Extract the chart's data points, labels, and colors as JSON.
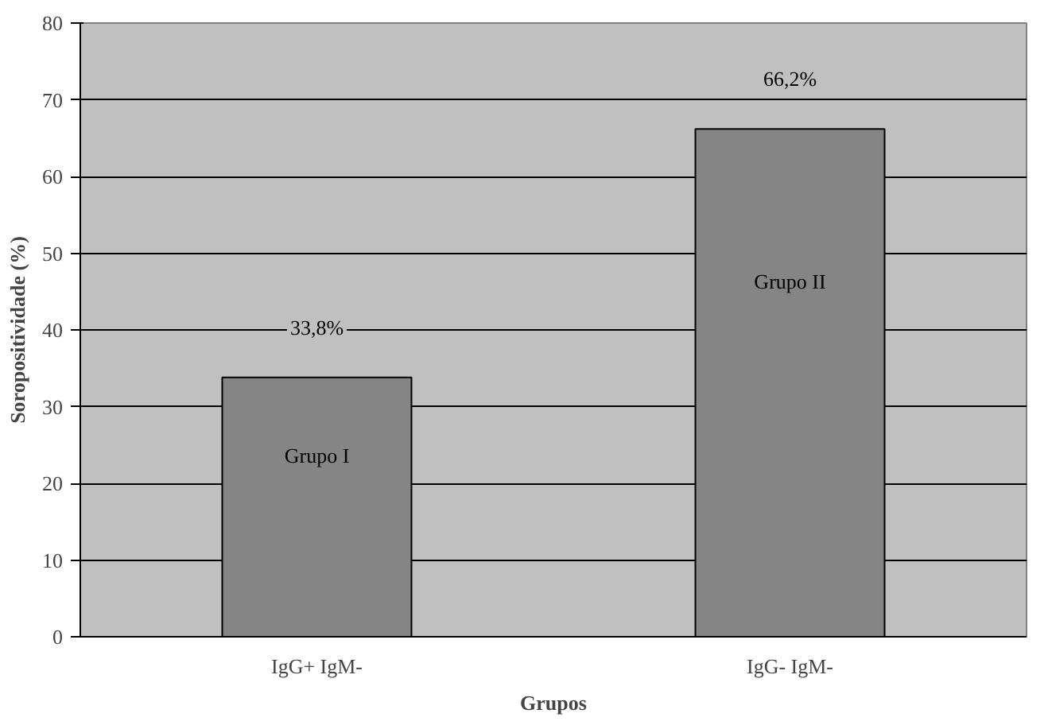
{
  "chart_data": {
    "type": "bar",
    "xlabel": "Grupos",
    "ylabel": "Soropositividade (%)",
    "categories": [
      "IgG+ IgM-",
      "IgG- IgM-"
    ],
    "values": [
      33.8,
      66.2
    ],
    "value_labels": [
      "33,8%",
      "66,2%"
    ],
    "colors": [
      "#858585",
      "#858585"
    ],
    "ylim": [
      0,
      80
    ],
    "yticks": [
      0,
      10,
      20,
      30,
      40,
      50,
      60,
      70,
      80
    ],
    "grid": "y",
    "annotations": [
      "Grupo I",
      "Grupo II"
    ]
  }
}
